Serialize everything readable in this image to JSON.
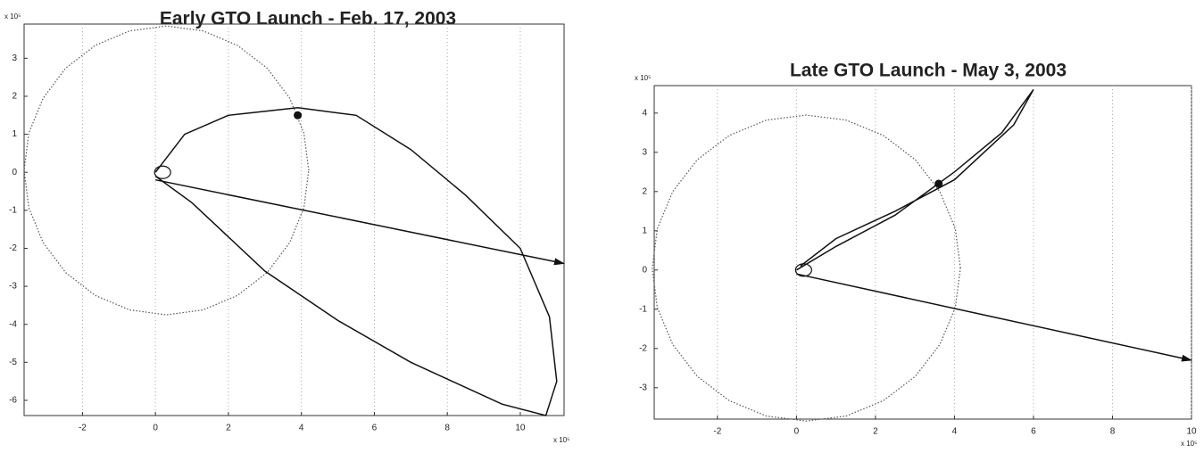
{
  "chart_data": [
    {
      "type": "line",
      "title": "Early GTO Launch - Feb. 17, 2003",
      "x_multiplier": "x 10⁵",
      "y_multiplier": "x 10⁵",
      "xlim": [
        -3.6,
        11.2
      ],
      "ylim": [
        -6.4,
        3.9
      ],
      "xticks": [
        -2,
        0,
        2,
        4,
        6,
        8,
        10
      ],
      "yticks": [
        -6,
        -5,
        -4,
        -3,
        -2,
        -1,
        0,
        1,
        2,
        3
      ],
      "grid": "x",
      "series": [
        {
          "style": "dotted",
          "color": "#555555",
          "x": [
            4.2,
            4.07,
            3.68,
            3.06,
            2.25,
            1.31,
            0.3,
            -0.71,
            -1.65,
            -2.46,
            -3.08,
            -3.47,
            -3.6,
            -3.47,
            -3.08,
            -2.46,
            -1.65,
            -0.71,
            0.3,
            1.31,
            2.25,
            3.06,
            3.68,
            4.07,
            4.2
          ],
          "values": [
            0.05,
            1.03,
            1.95,
            2.74,
            3.34,
            3.72,
            3.85,
            3.72,
            3.34,
            2.74,
            1.95,
            1.03,
            0.05,
            -0.93,
            -1.85,
            -2.64,
            -3.24,
            -3.62,
            -3.75,
            -3.62,
            -3.24,
            -2.64,
            -1.85,
            -0.93,
            0.05
          ]
        },
        {
          "style": "solid",
          "color": "#111111",
          "x": [
            0,
            0.8,
            2,
            3.9,
            5.5,
            7,
            8.5,
            10,
            10.8,
            11,
            10.7,
            9.5,
            7,
            5,
            3,
            1,
            0
          ],
          "values": [
            0,
            1.0,
            1.5,
            1.7,
            1.5,
            0.6,
            -0.6,
            -2,
            -3.8,
            -5.5,
            -6.4,
            -6.1,
            -5,
            -3.9,
            -2.6,
            -0.8,
            -0.1
          ]
        },
        {
          "style": "arrow",
          "color": "#111111",
          "x": [
            0,
            11.2
          ],
          "values": [
            -0.2,
            -2.4
          ]
        },
        {
          "style": "point",
          "color": "#111111",
          "x": [
            3.9
          ],
          "values": [
            1.5
          ]
        }
      ]
    },
    {
      "type": "line",
      "title": "Late GTO Launch - May 3, 2003",
      "x_multiplier": "x 10⁵",
      "y_multiplier": "x 10⁵",
      "xlim": [
        -3.6,
        10
      ],
      "ylim": [
        -3.8,
        4.7
      ],
      "xticks": [
        -2,
        0,
        2,
        4,
        6,
        8,
        10
      ],
      "yticks": [
        -3,
        -2,
        -1,
        0,
        1,
        2,
        3,
        4
      ],
      "grid": "x",
      "series": [
        {
          "style": "dotted",
          "color": "#555555",
          "x": [
            4.15,
            4.02,
            3.63,
            3.01,
            2.2,
            1.26,
            0.25,
            -0.76,
            -1.7,
            -2.51,
            -3.13,
            -3.52,
            -3.65,
            -3.52,
            -3.13,
            -2.51,
            -1.7,
            -0.76,
            0.25,
            1.26,
            2.2,
            3.01,
            3.63,
            4.02,
            4.15
          ],
          "values": [
            0.05,
            1.06,
            2.0,
            2.81,
            3.43,
            3.82,
            3.95,
            3.82,
            3.43,
            2.81,
            2.0,
            1.06,
            0.05,
            -0.96,
            -1.9,
            -2.71,
            -3.33,
            -3.72,
            -3.85,
            -3.72,
            -3.33,
            -2.71,
            -1.9,
            -0.96,
            0.05
          ]
        },
        {
          "style": "solid",
          "color": "#111111",
          "x": [
            0,
            1,
            2.5,
            4,
            5.2,
            6,
            5.5,
            4,
            2.5,
            1,
            0.1
          ],
          "values": [
            0,
            0.6,
            1.4,
            2.5,
            3.5,
            4.6,
            3.7,
            2.3,
            1.5,
            0.8,
            0.1
          ]
        },
        {
          "style": "arrow",
          "color": "#111111",
          "x": [
            0,
            5,
            10
          ],
          "values": [
            -0.1,
            -1.2,
            -2.3
          ]
        },
        {
          "style": "point",
          "color": "#111111",
          "x": [
            3.6
          ],
          "values": [
            2.2
          ]
        }
      ]
    }
  ]
}
